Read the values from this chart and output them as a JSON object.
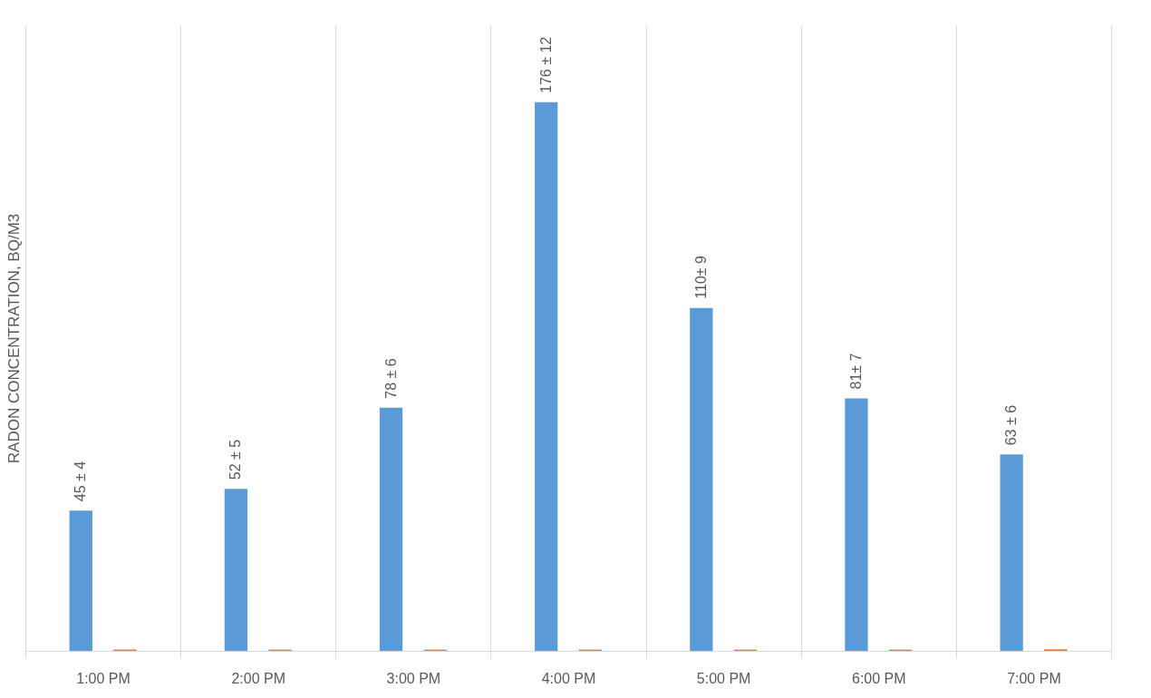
{
  "chart_data": {
    "type": "bar",
    "ylabel": "RADON CONCENTRATION, BQ/M3",
    "categories": [
      "1:00 PM",
      "2:00 PM",
      "3:00 PM",
      "4:00 PM",
      "5:00 PM",
      "6:00 PM",
      "7:00 PM"
    ],
    "series": [
      {
        "color": "#5b9bd5",
        "values": [
          45,
          52,
          78,
          176,
          110,
          81,
          63
        ],
        "value_labels": [
          "45 ± 4",
          "52 ± 5",
          "78 ± 6",
          "176 ± 12",
          "110± 9",
          "81± 7",
          "63 ± 6"
        ]
      },
      {
        "color": "#ed7d31",
        "values": [
          0.4,
          0.4,
          0.4,
          0.4,
          0.4,
          0.4,
          0.5
        ]
      }
    ],
    "grid": "x",
    "legend": false
  }
}
